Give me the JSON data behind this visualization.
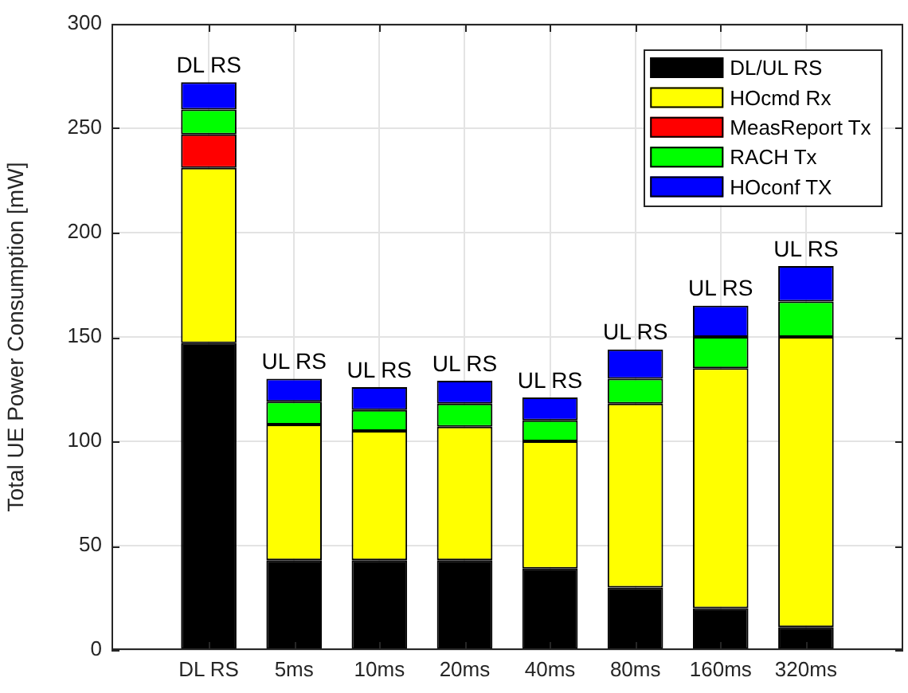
{
  "chart_data": {
    "type": "bar",
    "stacked": true,
    "ylabel": "Total UE Power Consumption [mW]",
    "categories": [
      "DL RS",
      "5ms",
      "10ms",
      "20ms",
      "40ms",
      "80ms",
      "160ms",
      "320ms"
    ],
    "series": [
      {
        "name": "DL/UL RS",
        "color": "#000000",
        "values": [
          147,
          43,
          43,
          43,
          39,
          30,
          20,
          11
        ]
      },
      {
        "name": "HOcmd Rx",
        "color": "#ffff00",
        "values": [
          84,
          65,
          62,
          64,
          61,
          88,
          115,
          139
        ]
      },
      {
        "name": "MeasReport Tx",
        "color": "#ff0000",
        "values": [
          16,
          0,
          0,
          0,
          0,
          0,
          0,
          0
        ]
      },
      {
        "name": "RACH Tx",
        "color": "#00ff00",
        "values": [
          12,
          11,
          10,
          11,
          10,
          12,
          15,
          17
        ]
      },
      {
        "name": "HOconf TX",
        "color": "#0000ff",
        "values": [
          13,
          11,
          11,
          11,
          11,
          14,
          15,
          17
        ]
      }
    ],
    "ylim": [
      0,
      300
    ],
    "yticks": [
      0,
      50,
      100,
      150,
      200,
      250,
      300
    ],
    "grid": true,
    "legend": "top right",
    "annotations": [
      {
        "text": "DL RS",
        "x": "DL RS",
        "y": 272
      },
      {
        "text": "UL RS",
        "x": "5ms",
        "y": 130
      },
      {
        "text": "UL RS",
        "x": "10ms",
        "y": 126
      },
      {
        "text": "UL RS",
        "x": "20ms",
        "y": 129
      },
      {
        "text": "UL RS",
        "x": "40ms",
        "y": 121
      },
      {
        "text": "UL RS",
        "x": "80ms",
        "y": 144
      },
      {
        "text": "UL RS",
        "x": "160ms",
        "y": 165
      },
      {
        "text": "UL RS",
        "x": "320ms",
        "y": 184
      }
    ]
  }
}
